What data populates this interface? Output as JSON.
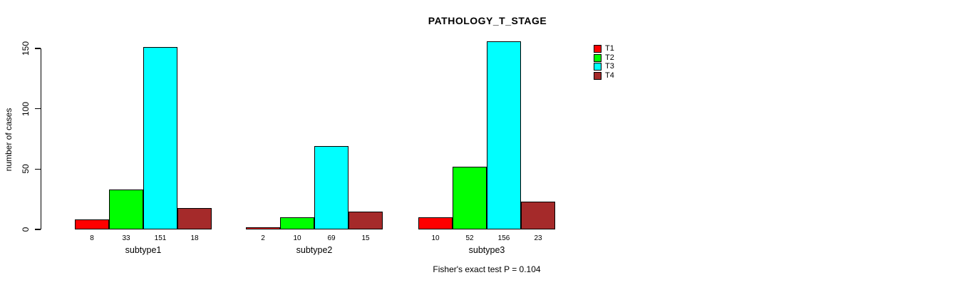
{
  "figure": {
    "title": "PATHOLOGY_T_STAGE",
    "annotation": "Fisher's exact test P = 0.104"
  },
  "chart_data": {
    "type": "bar",
    "title": "PATHOLOGY_T_STAGE",
    "xlabel": "",
    "ylabel": "number of cases",
    "categories": [
      "subtype1",
      "subtype2",
      "subtype3"
    ],
    "series": [
      {
        "name": "T1",
        "color": "#ff0000",
        "values": [
          8,
          2,
          10
        ]
      },
      {
        "name": "T2",
        "color": "#00ff00",
        "values": [
          33,
          10,
          52
        ]
      },
      {
        "name": "T3",
        "color": "#00ffff",
        "values": [
          151,
          69,
          156
        ]
      },
      {
        "name": "T4",
        "color": "#a52a2a",
        "values": [
          18,
          15,
          23
        ]
      }
    ],
    "bar_value_labels": [
      [
        8,
        33,
        151,
        18
      ],
      [
        2,
        10,
        69,
        15
      ],
      [
        10,
        52,
        156,
        23
      ]
    ],
    "yticks": [
      0,
      50,
      100,
      150
    ],
    "ylim": [
      0,
      160
    ],
    "grid": false,
    "legend": {
      "position": "top-right",
      "entries": [
        "T1",
        "T2",
        "T3",
        "T4"
      ]
    },
    "annotation": "Fisher's exact test P = 0.104",
    "colors": {
      "background": "#ffffff",
      "bar_border": "#000000",
      "text": "#000000"
    }
  }
}
